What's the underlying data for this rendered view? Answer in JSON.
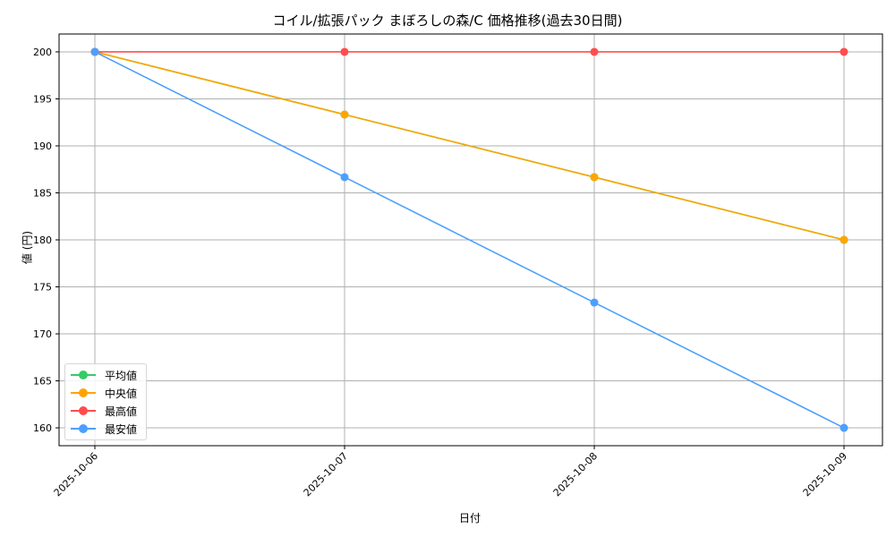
{
  "chart_data": {
    "type": "line",
    "title": "コイル/拡張パック まぼろしの森/C 価格推移(過去30日間)",
    "xlabel": "日付",
    "ylabel": "値 (円)",
    "categories": [
      "2025-10-06",
      "2025-10-07",
      "2025-10-08",
      "2025-10-09"
    ],
    "series": [
      {
        "name": "平均値",
        "color": "#33cc66",
        "values": [
          200,
          193.33,
          186.67,
          180
        ]
      },
      {
        "name": "中央値",
        "color": "#ffa500",
        "values": [
          200,
          193.33,
          186.67,
          180
        ]
      },
      {
        "name": "最高値",
        "color": "#ff4d4d",
        "values": [
          200,
          200,
          200,
          200
        ]
      },
      {
        "name": "最安値",
        "color": "#4d9fff",
        "values": [
          200,
          186.67,
          173.33,
          160
        ]
      }
    ],
    "yticks": [
      160,
      165,
      170,
      175,
      180,
      185,
      190,
      195,
      200
    ],
    "ylim": [
      158.1,
      201.9
    ],
    "grid": true,
    "legend_position": "lower left",
    "marker": "circle"
  }
}
